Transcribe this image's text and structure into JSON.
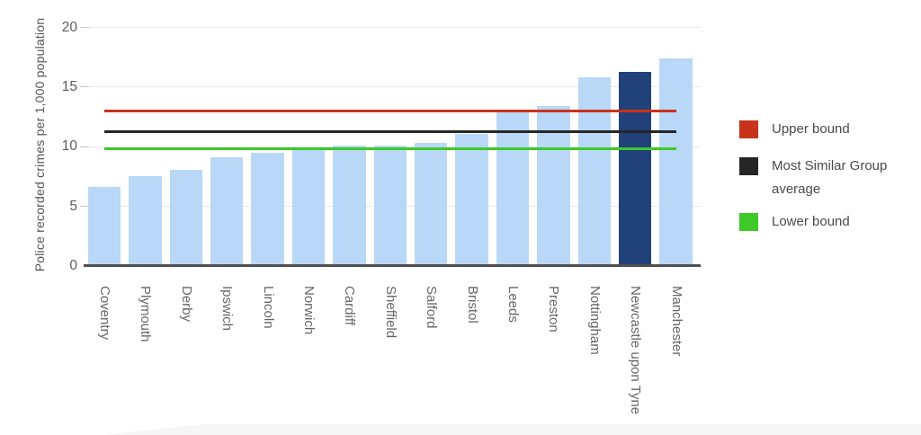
{
  "chart_data": {
    "type": "bar",
    "title": "",
    "xlabel": "",
    "ylabel": "Police recorded crimes per 1,000 population",
    "ylim": [
      0,
      20
    ],
    "yticks": [
      0,
      5,
      10,
      15,
      20
    ],
    "grid": "horizontal",
    "legend_position": "right",
    "categories": [
      "Coventry",
      "Plymouth",
      "Derby",
      "Ipswich",
      "Lincoln",
      "Norwich",
      "Cardiff",
      "Sheffield",
      "Salford",
      "Bristol",
      "Leeds",
      "Preston",
      "Nottingham",
      "Newcastle upon Tyne",
      "Manchester"
    ],
    "values": [
      6.6,
      7.5,
      8.1,
      9.1,
      9.5,
      9.8,
      10.1,
      10.1,
      10.3,
      11.1,
      12.9,
      13.4,
      15.8,
      16.3,
      17.4
    ],
    "bar_color": "#b9d8f7",
    "highlighted_category": "Newcastle upon Tyne",
    "highlight_color": "#204179",
    "reference_lines": [
      {
        "label": "Upper bound",
        "value": 13.0,
        "color": "#c8331b"
      },
      {
        "label": "Most Similar Group average",
        "value": 11.3,
        "color": "#262626"
      },
      {
        "label": "Lower bound",
        "value": 9.8,
        "color": "#3ec929"
      }
    ]
  }
}
